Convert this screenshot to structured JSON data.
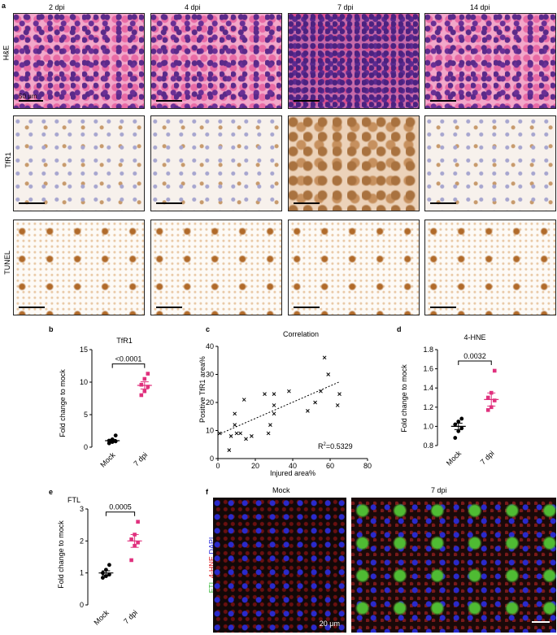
{
  "figure": {
    "panel_letter_a": "a",
    "columns": [
      "2 dpi",
      "4 dpi",
      "7 dpi",
      "14 dpi"
    ],
    "rows": [
      "H&E",
      "TfR1",
      "TUNEL"
    ],
    "scale_label_a": "50 μm",
    "panel_b": {
      "letter": "b",
      "title": "TfR1",
      "ylabel": "Fold change to mock",
      "p_value": "<0.0001",
      "categories": [
        "Mock",
        "7 dpi"
      ],
      "yticks": [
        "0",
        "5",
        "10",
        "15"
      ]
    },
    "panel_c": {
      "letter": "c",
      "title": "Correlation",
      "xlabel": "Injured area%",
      "ylabel": "Positive TfR1 area%",
      "r2_base": "R",
      "r2_sup": "2",
      "r2_rest": "=0.5329",
      "xticks": [
        "0",
        "20",
        "40",
        "60",
        "80"
      ],
      "yticks": [
        "0",
        "10",
        "20",
        "30",
        "40"
      ]
    },
    "panel_d": {
      "letter": "d",
      "title": "4-HNE",
      "ylabel": "Fold change to mock",
      "p_value": "0.0032",
      "categories": [
        "Mock",
        "7 dpi"
      ],
      "yticks": [
        "0.8",
        "1.0",
        "1.2",
        "1.4",
        "1.6",
        "1.8"
      ]
    },
    "panel_e": {
      "letter": "e",
      "title": "FTL",
      "ylabel": "Fold change to mock",
      "p_value": "0.0005",
      "categories": [
        "Mock",
        "7 dpi"
      ],
      "yticks": [
        "0",
        "1",
        "2",
        "3"
      ]
    },
    "panel_f": {
      "letter": "f",
      "columns": [
        "Mock",
        "7 dpi"
      ],
      "stain_ftl": "FTL",
      "stain_hne": "4-HNE",
      "stain_dapi": "DAPI",
      "scale_label": "20 μm"
    },
    "colors": {
      "mock": "#000000",
      "dpi7": "#e0317e",
      "ftl": "#3dbb3d",
      "hne": "#e02020",
      "dapi": "#3030dd"
    }
  },
  "chart_data": [
    {
      "type": "scatter",
      "title": "TfR1",
      "ylabel": "Fold change to mock",
      "categories": [
        "Mock",
        "7 dpi"
      ],
      "ylim": [
        0,
        15
      ],
      "series": [
        {
          "name": "Mock",
          "values": [
            0.6,
            0.8,
            0.9,
            1.0,
            1.2,
            1.8
          ],
          "mean": 1.0
        },
        {
          "name": "7 dpi",
          "values": [
            8.0,
            8.6,
            9.3,
            9.6,
            10.5,
            11.3
          ],
          "mean": 9.5
        }
      ]
    },
    {
      "type": "scatter",
      "title": "Correlation",
      "xlabel": "Injured area%",
      "ylabel": "Positive TfR1 area%",
      "xlim": [
        0,
        80
      ],
      "ylim": [
        0,
        40
      ],
      "x": [
        1,
        6,
        7,
        9,
        9,
        10,
        12,
        14,
        15,
        18,
        25,
        27,
        28,
        30,
        30,
        30,
        38,
        48,
        52,
        55,
        57,
        59,
        64,
        65
      ],
      "y": [
        9,
        3,
        8,
        12,
        16,
        9,
        9,
        21,
        7,
        8,
        23,
        9,
        12,
        16,
        19,
        23,
        24,
        17,
        20,
        24,
        36,
        30,
        19,
        23
      ],
      "fit": {
        "slope": 0.29,
        "intercept": 8.5
      }
    },
    {
      "type": "scatter",
      "title": "4-HNE",
      "ylabel": "Fold change to mock",
      "categories": [
        "Mock",
        "7 dpi"
      ],
      "ylim": [
        0.8,
        1.8
      ],
      "series": [
        {
          "name": "Mock",
          "values": [
            0.88,
            0.95,
            0.98,
            1.02,
            1.05,
            1.08
          ],
          "mean": 1.0
        },
        {
          "name": "7 dpi",
          "values": [
            1.17,
            1.2,
            1.27,
            1.3,
            1.35,
            1.58
          ],
          "mean": 1.28
        }
      ]
    },
    {
      "type": "scatter",
      "title": "FTL",
      "ylabel": "Fold change to mock",
      "categories": [
        "Mock",
        "7 dpi"
      ],
      "ylim": [
        0,
        3
      ],
      "series": [
        {
          "name": "Mock",
          "values": [
            0.85,
            0.9,
            0.95,
            1.0,
            1.1,
            1.25
          ],
          "mean": 1.0
        },
        {
          "name": "7 dpi",
          "values": [
            1.4,
            1.85,
            1.95,
            2.05,
            2.2,
            2.6
          ],
          "mean": 2.0
        }
      ]
    }
  ]
}
